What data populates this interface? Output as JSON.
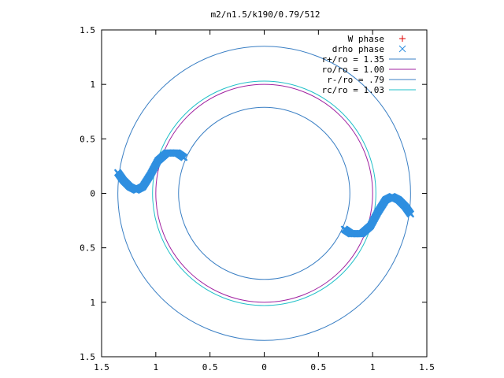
{
  "chart_data": {
    "type": "scatter",
    "title": "m2/n1.5/k190/0.79/512",
    "xlabel": "",
    "ylabel": "",
    "xlim": [
      -1.5,
      1.5
    ],
    "ylim": [
      -1.5,
      1.5
    ],
    "x_ticks": [
      {
        "value": -1.5,
        "label": "1.5"
      },
      {
        "value": -1.0,
        "label": "1"
      },
      {
        "value": -0.5,
        "label": "0.5"
      },
      {
        "value": 0.0,
        "label": "0"
      },
      {
        "value": 0.5,
        "label": "0.5"
      },
      {
        "value": 1.0,
        "label": "1"
      },
      {
        "value": 1.5,
        "label": "1.5"
      }
    ],
    "y_ticks": [
      {
        "value": 1.5,
        "label": "1.5"
      },
      {
        "value": 1.0,
        "label": "1"
      },
      {
        "value": 0.5,
        "label": "0.5"
      },
      {
        "value": 0.0,
        "label": "0"
      },
      {
        "value": -0.5,
        "label": "0.5"
      },
      {
        "value": -1.0,
        "label": "1"
      },
      {
        "value": -1.5,
        "label": "1.5"
      }
    ],
    "grid": false,
    "legend_position": "top-right",
    "circles": [
      {
        "name": "r+/ro = 1.35",
        "radius": 1.35,
        "color": "#3a7fc4"
      },
      {
        "name": "ro/ro = 1.00",
        "radius": 1.0,
        "color": "#a020a0"
      },
      {
        "name": "r-/ro = .79",
        "radius": 0.79,
        "color": "#3a7fc4"
      },
      {
        "name": "rc/ro = 1.03",
        "radius": 1.03,
        "color": "#20c0c8"
      }
    ],
    "series": [
      {
        "name": "W phase",
        "marker": "+",
        "color": "#e00000",
        "points": []
      },
      {
        "name": "drho phase",
        "marker": "x",
        "color": "#2f8fe0",
        "arcs": [
          {
            "points": [
              [
                -1.35,
                0.19
              ],
              [
                -1.3,
                0.12
              ],
              [
                -1.24,
                0.06
              ],
              [
                -1.18,
                0.03
              ],
              [
                -1.12,
                0.06
              ],
              [
                -1.05,
                0.17
              ],
              [
                -0.98,
                0.3
              ],
              [
                -0.9,
                0.37
              ],
              [
                -0.8,
                0.37
              ],
              [
                -0.74,
                0.33
              ]
            ]
          },
          {
            "points": [
              [
                0.74,
                -0.33
              ],
              [
                0.8,
                -0.37
              ],
              [
                0.9,
                -0.37
              ],
              [
                0.98,
                -0.3
              ],
              [
                1.05,
                -0.17
              ],
              [
                1.12,
                -0.06
              ],
              [
                1.18,
                -0.03
              ],
              [
                1.24,
                -0.06
              ],
              [
                1.3,
                -0.12
              ],
              [
                1.35,
                -0.19
              ]
            ]
          }
        ]
      }
    ]
  }
}
